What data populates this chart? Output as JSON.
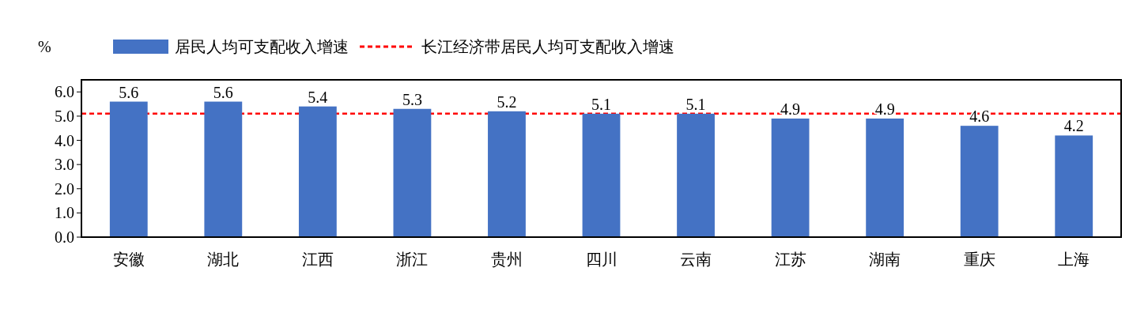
{
  "chart_data": {
    "type": "bar",
    "ylabel": "%",
    "categories": [
      "安徽",
      "湖北",
      "江西",
      "浙江",
      "贵州",
      "四川",
      "云南",
      "江苏",
      "湖南",
      "重庆",
      "上海"
    ],
    "series": [
      {
        "name": "居民人均可支配收入增速",
        "color": "#4472c4",
        "values": [
          5.6,
          5.6,
          5.4,
          5.3,
          5.2,
          5.1,
          5.1,
          4.9,
          4.9,
          4.6,
          4.2
        ]
      }
    ],
    "ylim": [
      0,
      6.5
    ],
    "yticks": [
      {
        "value": 0,
        "label": "0.0"
      },
      {
        "value": 1,
        "label": "1.0"
      },
      {
        "value": 2,
        "label": "2.0"
      },
      {
        "value": 3,
        "label": "3.0"
      },
      {
        "value": 4,
        "label": "4.0"
      },
      {
        "value": 5,
        "label": "5.0"
      },
      {
        "value": 6,
        "label": "6.0"
      }
    ],
    "ref_lines": [
      {
        "axis": "y",
        "value": 5.1,
        "label": "长江经济带居民人均可支配收入增速",
        "color": "#ff0000",
        "line_style": "dashed"
      }
    ],
    "data_labels": true,
    "legend": "top",
    "grid": false
  }
}
